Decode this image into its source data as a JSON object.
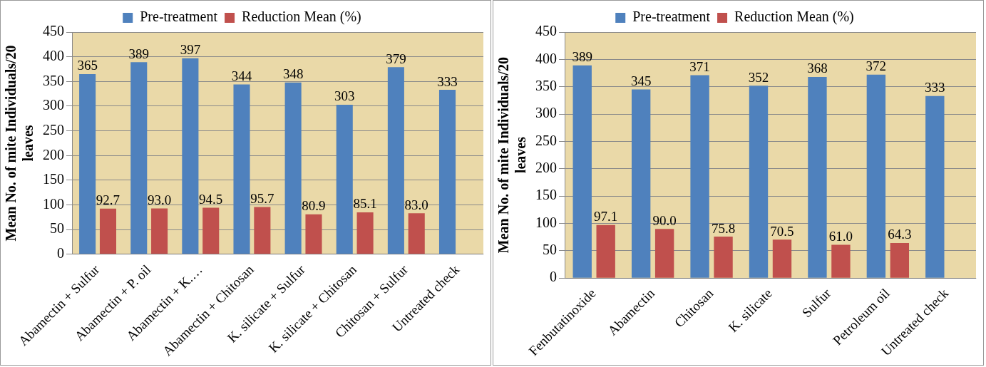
{
  "chart_data": [
    {
      "type": "bar",
      "ylabel": "Mean No. of mite Individuals/20 leaves",
      "categories": [
        "Abamectin + Sulfur",
        "Abamectin + P. oil",
        "Abamectin + K.…",
        "Abamectin + Chitosan",
        "K. silicate + Sulfur",
        "K. silicate + Chitosan",
        "Chitosan + Sulfur",
        "Untreated check"
      ],
      "series": [
        {
          "name": "Pre-treatment",
          "color": "#4f81bd",
          "values": [
            365,
            389,
            397,
            344,
            348,
            303,
            379,
            333
          ],
          "value_labels": [
            "365",
            "389",
            "397",
            "344",
            "348",
            "303",
            "379",
            "333"
          ]
        },
        {
          "name": "Reduction Mean (%)",
          "color": "#c0504d",
          "values": [
            92.7,
            93.0,
            94.5,
            95.7,
            80.9,
            85.1,
            83.0,
            null
          ],
          "value_labels": [
            "92.7",
            "93.0",
            "94.5",
            "95.7",
            "80.9",
            "85.1",
            "83.0",
            null
          ]
        }
      ],
      "ylim": [
        0,
        450
      ],
      "yticks": [
        0,
        50,
        100,
        150,
        200,
        250,
        300,
        350,
        400,
        450
      ],
      "grid": "y",
      "legend": "top"
    },
    {
      "type": "bar",
      "ylabel": "Mean No. of mite Individuals/20 leaves",
      "categories": [
        "Fenbutatinoxide",
        "Abamectin",
        "Chitosan",
        "K. silicate",
        "Sulfur",
        "Petroleum oil",
        "Untreated check"
      ],
      "series": [
        {
          "name": "Pre-treatment",
          "color": "#4f81bd",
          "values": [
            389,
            345,
            371,
            352,
            368,
            372,
            333
          ],
          "value_labels": [
            "389",
            "345",
            "371",
            "352",
            "368",
            "372",
            "333"
          ]
        },
        {
          "name": "Reduction Mean (%)",
          "color": "#c0504d",
          "values": [
            97.1,
            90.0,
            75.8,
            70.5,
            61.0,
            64.3,
            null
          ],
          "value_labels": [
            "97.1",
            "90.0",
            "75.8",
            "70.5",
            "61.0",
            "64.3",
            null
          ]
        }
      ],
      "ylim": [
        0,
        450
      ],
      "yticks": [
        0,
        50,
        100,
        150,
        200,
        250,
        300,
        350,
        400,
        450
      ],
      "grid": "y",
      "legend": "top"
    }
  ]
}
